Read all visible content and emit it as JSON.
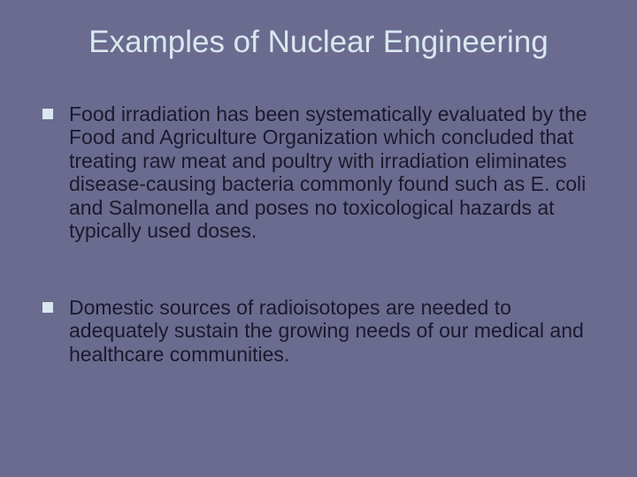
{
  "slide": {
    "title": "Examples of Nuclear Engineering",
    "background_color": "#6b6b8f",
    "title_color": "#d9e8f0",
    "body_text_color": "#1a1a2e",
    "bullet_color": "#d9e8f0",
    "title_fontsize": 35,
    "body_fontsize": 23,
    "bullets": [
      {
        "text": "Food irradiation has been systematically evaluated by the Food and Agriculture Organization which concluded that treating raw meat and poultry with irradiation eliminates disease-causing bacteria commonly found such as E. coli and Salmonella and poses no toxicological hazards at typically used doses."
      },
      {
        "text": "Domestic sources of radioisotopes are needed to adequately sustain the growing needs of our medical and healthcare communities."
      }
    ]
  }
}
